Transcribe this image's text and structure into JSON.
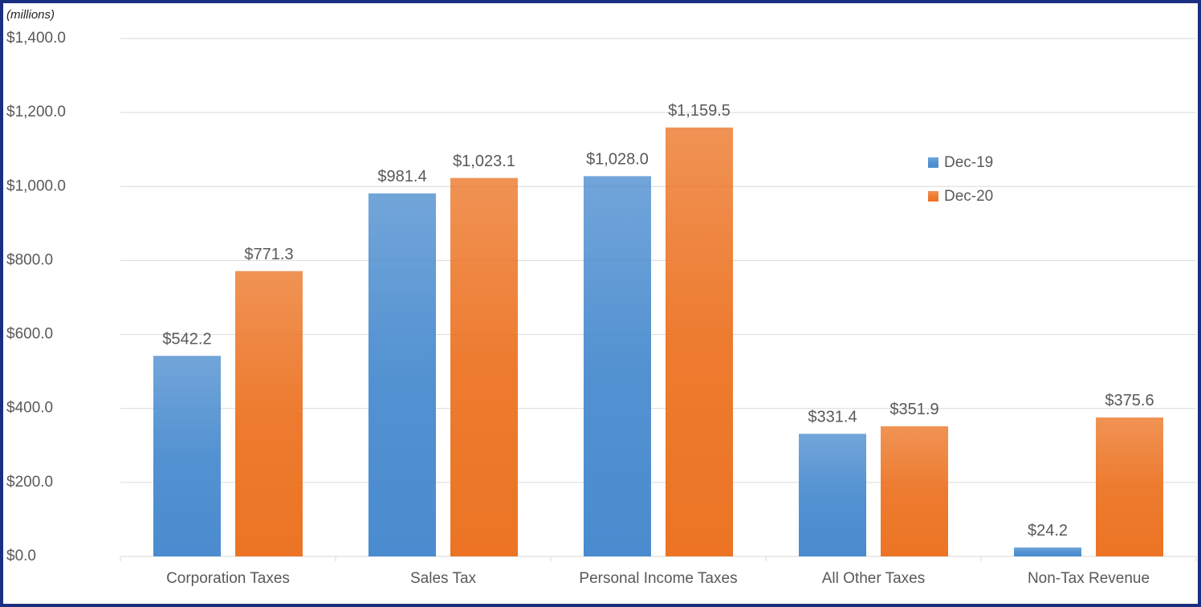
{
  "chart_data": {
    "type": "bar",
    "y_axis_label": "(millions)",
    "categories": [
      "Corporation Taxes",
      "Sales Tax",
      "Personal Income Taxes",
      "All Other Taxes",
      "Non-Tax Revenue"
    ],
    "series": [
      {
        "name": "Dec-19",
        "color": "#4a8ccf",
        "values": [
          542.2,
          981.4,
          1028.0,
          331.4,
          24.2
        ],
        "value_labels": [
          "$542.2",
          "$981.4",
          "$1,028.0",
          "$331.4",
          "$24.2"
        ]
      },
      {
        "name": "Dec-20",
        "color": "#ec7424",
        "values": [
          771.3,
          1023.1,
          1159.5,
          351.9,
          375.6
        ],
        "value_labels": [
          "$771.3",
          "$1,023.1",
          "$1,159.5",
          "$351.9",
          "$375.6"
        ]
      }
    ],
    "ylim": [
      0,
      1400
    ],
    "yticks": [
      {
        "value": 0,
        "label": "$0.0"
      },
      {
        "value": 200,
        "label": "$200.0"
      },
      {
        "value": 400,
        "label": "$400.0"
      },
      {
        "value": 600,
        "label": "$600.0"
      },
      {
        "value": 800,
        "label": "$800.0"
      },
      {
        "value": 1000,
        "label": "$1,000.0"
      },
      {
        "value": 1200,
        "label": "$1,200.0"
      },
      {
        "value": 1400,
        "label": "$1,400.0"
      }
    ],
    "grid": true,
    "legend_position": "right"
  }
}
